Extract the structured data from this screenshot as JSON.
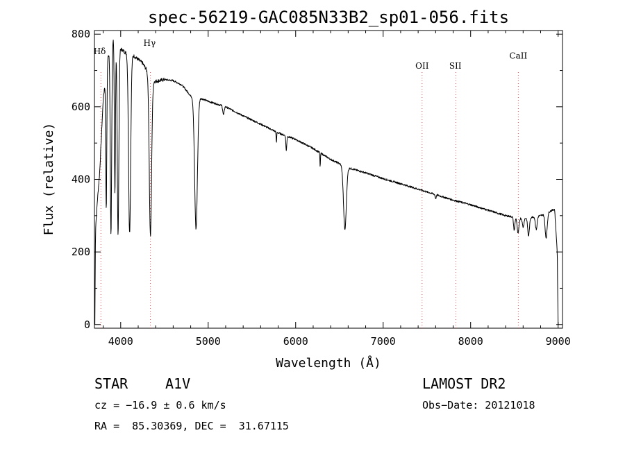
{
  "chart_data": {
    "type": "line",
    "title": "spec-56219-GAC085N33B2_sp01-056.fits",
    "xlabel": "Wavelength (Å)",
    "ylabel": "Flux (relative)",
    "xlim": [
      3700,
      9050
    ],
    "ylim": [
      -10,
      810
    ],
    "x_ticks": [
      4000,
      5000,
      6000,
      7000,
      8000,
      9000
    ],
    "y_ticks": [
      0,
      200,
      400,
      600,
      800
    ],
    "grid": false,
    "continuum": [
      [
        3705,
        0
      ],
      [
        3712,
        260
      ],
      [
        3730,
        330
      ],
      [
        3760,
        420
      ],
      [
        3800,
        620
      ],
      [
        3850,
        730
      ],
      [
        3900,
        790
      ],
      [
        3950,
        780
      ],
      [
        4000,
        760
      ],
      [
        4050,
        750
      ],
      [
        4100,
        745
      ],
      [
        4150,
        740
      ],
      [
        4200,
        730
      ],
      [
        4250,
        720
      ],
      [
        4300,
        700
      ],
      [
        4360,
        670
      ],
      [
        4400,
        670
      ],
      [
        4500,
        675
      ],
      [
        4600,
        672
      ],
      [
        4700,
        660
      ],
      [
        4800,
        630
      ],
      [
        4900,
        625
      ],
      [
        5000,
        615
      ],
      [
        5200,
        600
      ],
      [
        5400,
        575
      ],
      [
        5600,
        552
      ],
      [
        5800,
        528
      ],
      [
        6000,
        510
      ],
      [
        6200,
        485
      ],
      [
        6400,
        455
      ],
      [
        6600,
        432
      ],
      [
        6800,
        418
      ],
      [
        7000,
        402
      ],
      [
        7200,
        388
      ],
      [
        7400,
        373
      ],
      [
        7600,
        358
      ],
      [
        7800,
        343
      ],
      [
        8000,
        330
      ],
      [
        8200,
        315
      ],
      [
        8400,
        300
      ],
      [
        8600,
        292
      ],
      [
        8800,
        300
      ],
      [
        8960,
        318
      ],
      [
        8990,
        200
      ],
      [
        9000,
        0
      ]
    ],
    "absorption_lines": [
      {
        "center": 3835,
        "depth": 0.55,
        "width": 6
      },
      {
        "center": 3889,
        "depth": 0.68,
        "width": 8
      },
      {
        "center": 3934,
        "depth": 0.55,
        "width": 6
      },
      {
        "center": 3970,
        "depth": 0.68,
        "width": 9
      },
      {
        "center": 4102,
        "depth": 0.66,
        "width": 12
      },
      {
        "center": 4340,
        "depth": 0.64,
        "width": 13
      },
      {
        "center": 4861,
        "depth": 0.58,
        "width": 16
      },
      {
        "center": 5175,
        "depth": 0.04,
        "width": 8
      },
      {
        "center": 5780,
        "depth": 0.06,
        "width": 3
      },
      {
        "center": 5893,
        "depth": 0.08,
        "width": 5
      },
      {
        "center": 6280,
        "depth": 0.08,
        "width": 3
      },
      {
        "center": 6563,
        "depth": 0.4,
        "width": 16
      },
      {
        "center": 7600,
        "depth": 0.03,
        "width": 6
      },
      {
        "center": 8498,
        "depth": 0.12,
        "width": 8
      },
      {
        "center": 8542,
        "depth": 0.15,
        "width": 10
      },
      {
        "center": 8600,
        "depth": 0.08,
        "width": 9
      },
      {
        "center": 8662,
        "depth": 0.17,
        "width": 10
      },
      {
        "center": 8750,
        "depth": 0.12,
        "width": 10
      },
      {
        "center": 8863,
        "depth": 0.22,
        "width": 12
      }
    ],
    "annotations": [
      {
        "label": "Hδ",
        "wavelength": 3760,
        "flux": 745
      },
      {
        "label": "Hγ",
        "wavelength": 4330,
        "flux": 768
      },
      {
        "label": "OII",
        "wavelength": 7445,
        "flux": 705
      },
      {
        "label": "SII",
        "wavelength": 7825,
        "flux": 705
      },
      {
        "label": "CaII",
        "wavelength": 8545,
        "flux": 733
      }
    ],
    "line_markers": [
      3774,
      4340,
      7445,
      7830,
      8545
    ]
  },
  "info": {
    "object_type": "STAR",
    "subclass": "A1V",
    "survey": "LAMOST DR2",
    "cz": "cz = −16.9 ± 0.6 km/s",
    "obs_date": "Obs−Date: 20121018",
    "coords": "RA =  85.30369, DEC =  31.67115"
  },
  "colors": {
    "spectrum": "#000000",
    "marker": "#e05050",
    "axis": "#000000",
    "background": "#ffffff"
  }
}
